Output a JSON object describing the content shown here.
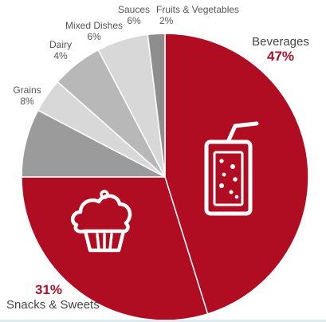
{
  "chart_data": {
    "type": "pie",
    "slices": [
      {
        "label": "Beverages",
        "pct_label": "47%",
        "value": 47,
        "color": "#b00d23",
        "icon": "drink-cup-icon"
      },
      {
        "label": "Snacks & Sweets",
        "pct_label": "31%",
        "value": 31,
        "color": "#b00d23",
        "icon": "cupcake-icon"
      },
      {
        "label": "Grains",
        "pct_label": "8%",
        "value": 8,
        "color": "#9b9b9b"
      },
      {
        "label": "Dairy",
        "pct_label": "4%",
        "value": 4,
        "color": "#d8d8d8"
      },
      {
        "label": "Mixed Dishes",
        "pct_label": "6%",
        "value": 6,
        "color": "#b8b8b8"
      },
      {
        "label": "Sauces",
        "pct_label": "6%",
        "value": 6,
        "color": "#d8d8d8"
      },
      {
        "label": "Fruits & Vegetables",
        "pct_label": "2%",
        "value": 2,
        "color": "#8e8e8e"
      }
    ],
    "accent_text_color": "#a8122a",
    "slice_border_color": "#ffffff"
  }
}
